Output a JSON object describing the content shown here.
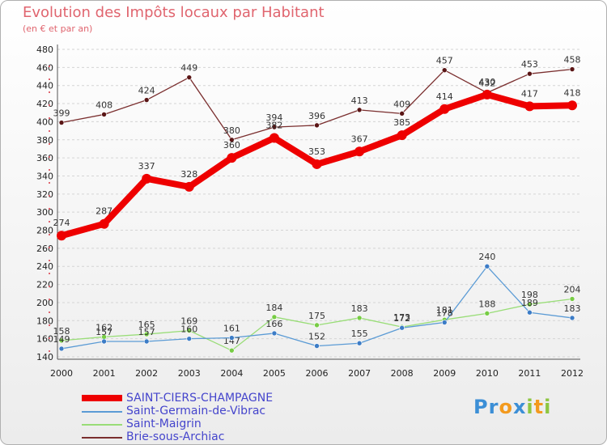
{
  "title": "Evolution des Impôts locaux par Habitant",
  "subtitle": "(en € et par an)",
  "logo": {
    "letters": [
      {
        "ch": "P",
        "color": "#3c8fd6"
      },
      {
        "ch": "r",
        "color": "#3c8fd6"
      },
      {
        "ch": "o",
        "color": "#f39a1e"
      },
      {
        "ch": "x",
        "color": "#3c8fd6"
      },
      {
        "ch": "i",
        "color": "#8ec641"
      },
      {
        "ch": "t",
        "color": "#f39a1e"
      },
      {
        "ch": "i",
        "color": "#8ec641"
      }
    ]
  },
  "chart_data": {
    "type": "line",
    "title": "Evolution des Impôts locaux par Habitant",
    "ylabel": "(en € et par an)",
    "xlabel": "",
    "x": [
      "2000",
      "2001",
      "2002",
      "2003",
      "2004",
      "2005",
      "2006",
      "2007",
      "2008",
      "2009",
      "2010",
      "2011",
      "2012"
    ],
    "ylim": [
      140,
      480
    ],
    "yticks": [
      140,
      160,
      180,
      200,
      220,
      240,
      260,
      280,
      300,
      320,
      340,
      360,
      380,
      400,
      420,
      440,
      460,
      480
    ],
    "grid": "horizontal dashed",
    "legend_position": "bottom-left",
    "series": [
      {
        "name": "SAINT-CIERS-CHAMPAGNE",
        "color": "#ee0000",
        "marker": "#ee0000",
        "values": [
          274,
          287,
          337,
          328,
          360,
          382,
          353,
          367,
          385,
          414,
          430,
          417,
          418
        ],
        "labels": [
          "274",
          "287",
          "337",
          "328",
          "360",
          "382",
          "353",
          "367",
          "385",
          "414",
          "430",
          "417",
          "418"
        ]
      },
      {
        "name": "Saint-Germain-de-Vibrac",
        "color": "#5b9bd5",
        "marker": "#3c7cc6",
        "values": [
          149,
          157,
          157,
          160,
          161,
          166,
          152,
          155,
          172,
          178,
          240,
          189,
          183
        ],
        "labels": [
          "149",
          "157",
          "157",
          "160",
          "161",
          "166",
          "152",
          "155",
          "172",
          "178",
          "240",
          "189",
          "183"
        ]
      },
      {
        "name": "Saint-Maigrin",
        "color": "#99dd77",
        "marker": "#77cc44",
        "values": [
          158,
          162,
          165,
          169,
          147,
          184,
          175,
          183,
          173,
          181,
          188,
          198,
          204
        ],
        "labels": [
          "158",
          "162",
          "165",
          "169",
          "147",
          "184",
          "175",
          "183",
          "173",
          "181",
          "188",
          "198",
          "204"
        ]
      },
      {
        "name": "Brie-sous-Archiac",
        "color": "#7a2e2e",
        "marker": "#5a1515",
        "values": [
          399,
          408,
          424,
          449,
          380,
          394,
          396,
          413,
          409,
          457,
          432,
          453,
          458
        ],
        "labels": [
          "399",
          "408",
          "424",
          "449",
          "380",
          "394",
          "396",
          "413",
          "409",
          "457",
          "432",
          "453",
          "458"
        ]
      }
    ]
  }
}
